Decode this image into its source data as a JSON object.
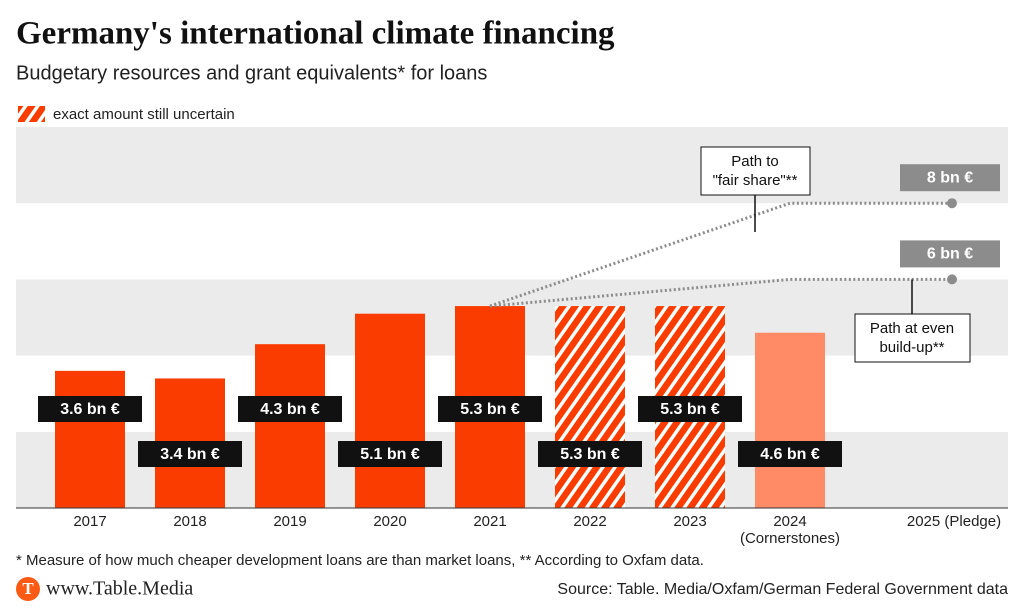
{
  "title": "Germany's international climate financing",
  "subtitle": "Budgetary resources and grant equivalents* for loans",
  "legend": "exact amount still uncertain",
  "chart_data": {
    "type": "bar",
    "categories": [
      "2017",
      "2018",
      "2019",
      "2020",
      "2021",
      "2022",
      "2023",
      "2024\n(Cornerstones)",
      "2025 (Pledge)"
    ],
    "values": [
      3.6,
      3.4,
      4.3,
      5.1,
      5.3,
      5.3,
      5.3,
      4.6,
      null
    ],
    "value_labels": [
      "3.6 bn €",
      "3.4 bn €",
      "4.3 bn €",
      "5.1 bn €",
      "5.3 bn €",
      "5.3 bn €",
      "5.3 bn €",
      "4.6 bn €",
      null
    ],
    "colors": [
      "#fa3c00",
      "#fa3c00",
      "#fa3c00",
      "#fa3c00",
      "#fa3c00",
      "#fa3c00",
      "#fa3c00",
      "#ff8a66",
      null
    ],
    "hatched": [
      false,
      false,
      false,
      false,
      false,
      true,
      true,
      false,
      false
    ],
    "ylim": [
      0,
      10
    ],
    "yticks": [
      0,
      2,
      4,
      6,
      8,
      10
    ],
    "grid": true,
    "pledges": [
      {
        "value": 8,
        "label": "8 bn €",
        "annotation": "Path to\n\"fair share\"**",
        "color": "#8c8c8c"
      },
      {
        "value": 6,
        "label": "6 bn €",
        "annotation": "Path at even\nbuild-up**",
        "color": "#8c8c8c"
      }
    ]
  },
  "footnote": "* Measure of how much cheaper development loans are than market loans, ** According to Oxfam data.",
  "footer": {
    "logo": "T",
    "site": "www.Table.Media",
    "source": "Source: Table. Media/Oxfam/German Federal Government data"
  }
}
